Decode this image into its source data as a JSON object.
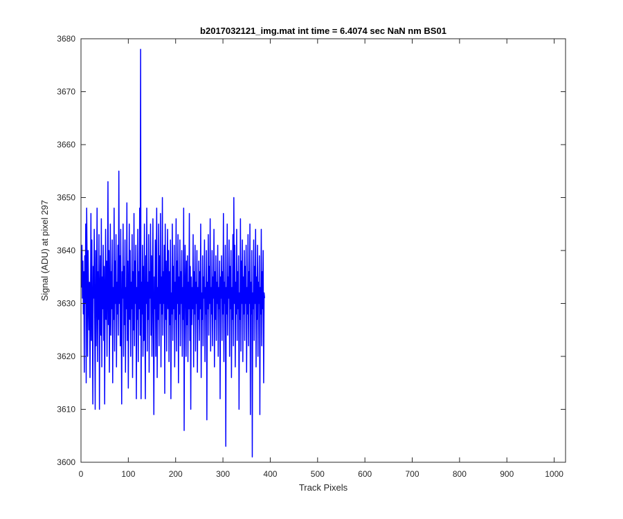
{
  "chart_data": {
    "type": "line",
    "title": "b2017032121_img.mat int time = 6.4074 sec  NaN nm BS01",
    "xlabel": "Track Pixels",
    "ylabel": "Signal (ADU) at pixel 297",
    "xlim": [
      0,
      1024
    ],
    "ylim": [
      3600,
      3680
    ],
    "xticks": [
      0,
      100,
      200,
      300,
      400,
      500,
      600,
      700,
      800,
      900,
      1000
    ],
    "yticks": [
      3600,
      3610,
      3620,
      3630,
      3640,
      3650,
      3660,
      3670,
      3680
    ],
    "grid": false,
    "line_color": "#0000ff",
    "series": [
      {
        "x_start": 1,
        "x_step": 1,
        "values": [
          3633,
          3641,
          3631,
          3638,
          3628,
          3636,
          3617,
          3639,
          3630,
          3645,
          3615,
          3648,
          3637,
          3620,
          3640,
          3632,
          3625,
          3634,
          3616,
          3630,
          3647,
          3623,
          3642,
          3628,
          3611,
          3637,
          3631,
          3644,
          3626,
          3610,
          3640,
          3622,
          3633,
          3648,
          3619,
          3636,
          3627,
          3643,
          3610,
          3631,
          3639,
          3624,
          3646,
          3618,
          3635,
          3629,
          3641,
          3623,
          3637,
          3611,
          3630,
          3644,
          3627,
          3638,
          3620,
          3633,
          3653,
          3626,
          3640,
          3617,
          3631,
          3645,
          3624,
          3636,
          3629,
          3642,
          3615,
          3633,
          3627,
          3648,
          3621,
          3638,
          3630,
          3643,
          3618,
          3634,
          3628,
          3641,
          3624,
          3655,
          3630,
          3639,
          3622,
          3644,
          3627,
          3611,
          3636,
          3631,
          3645,
          3620,
          3637,
          3626,
          3642,
          3617,
          3633,
          3629,
          3649,
          3623,
          3638,
          3614,
          3631,
          3645,
          3627,
          3640,
          3620,
          3634,
          3629,
          3643,
          3616,
          3636,
          3625,
          3647,
          3622,
          3638,
          3630,
          3641,
          3612,
          3633,
          3627,
          3644,
          3619,
          3636,
          3629,
          3648,
          3624,
          3678,
          3612,
          3634,
          3628,
          3641,
          3620,
          3637,
          3623,
          3645,
          3627,
          3612,
          3639,
          3630,
          3648,
          3621,
          3634,
          3627,
          3643,
          3617,
          3636,
          3631,
          3645,
          3624,
          3639,
          3620,
          3632,
          3646,
          3626,
          3609,
          3635,
          3629,
          3642,
          3620,
          3637,
          3648,
          3616,
          3633,
          3627,
          3645,
          3622,
          3639,
          3630,
          3647,
          3618,
          3635,
          3628,
          3650,
          3624,
          3636,
          3630,
          3641,
          3613,
          3645,
          3627,
          3638,
          3621,
          3633,
          3644,
          3629,
          3640,
          3619,
          3636,
          3626,
          3642,
          3612,
          3632,
          3628,
          3645,
          3623,
          3637,
          3629,
          3641,
          3618,
          3634,
          3627,
          3646,
          3621,
          3638,
          3630,
          3643,
          3615,
          3635,
          3628,
          3642,
          3622,
          3636,
          3630,
          3640,
          3620,
          3633,
          3627,
          3648,
          3606,
          3629,
          3641,
          3632,
          3620,
          3638,
          3626,
          3639,
          3619,
          3634,
          3629,
          3647,
          3623,
          3637,
          3610,
          3635,
          3626,
          3633,
          3629,
          3643,
          3618,
          3636,
          3628,
          3641,
          3621,
          3634,
          3630,
          3640,
          3617,
          3633,
          3627,
          3638,
          3623,
          3636,
          3629,
          3645,
          3616,
          3632,
          3627,
          3639,
          3622,
          3635,
          3631,
          3642,
          3619,
          3633,
          3628,
          3640,
          3608,
          3634,
          3629,
          3643,
          3624,
          3637,
          3630,
          3646,
          3621,
          3633,
          3628,
          3640,
          3622,
          3635,
          3631,
          3644,
          3618,
          3636,
          3627,
          3639,
          3623,
          3634,
          3630,
          3641,
          3620,
          3633,
          3629,
          3638,
          3612,
          3635,
          3631,
          3639,
          3623,
          3636,
          3628,
          3647,
          3619,
          3634,
          3630,
          3641,
          3603,
          3633,
          3628,
          3645,
          3624,
          3635,
          3631,
          3642,
          3620,
          3637,
          3629,
          3640,
          3616,
          3633,
          3627,
          3643,
          3622,
          3650,
          3630,
          3641,
          3618,
          3634,
          3628,
          3644,
          3623,
          3636,
          3629,
          3639,
          3610,
          3632,
          3627,
          3646,
          3621,
          3638,
          3630,
          3642,
          3619,
          3635,
          3628,
          3640,
          3623,
          3637,
          3630,
          3641,
          3617,
          3633,
          3628,
          3643,
          3622,
          3636,
          3630,
          3645,
          3609,
          3634,
          3628,
          3640,
          3601,
          3632,
          3629,
          3642,
          3623,
          3637,
          3630,
          3644,
          3618,
          3635,
          3627,
          3641,
          3620,
          3634,
          3630,
          3639,
          3609,
          3633,
          3628,
          3644,
          3622,
          3636,
          3629,
          3640,
          3615,
          3632,
          3631
        ]
      }
    ]
  }
}
